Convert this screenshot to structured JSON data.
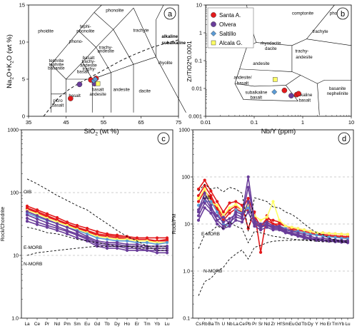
{
  "chart_data": [
    {
      "type": "scatter",
      "panel": "a",
      "xlabel_main": "SiO",
      "xlabel_sub": "2",
      "xlabel_tail": " (wt %)",
      "ylabel_parts": [
        "Na",
        "2",
        "O+K",
        "2",
        "O (wt %)"
      ],
      "xlim": [
        35,
        75
      ],
      "ylim": [
        0,
        15
      ],
      "x_ticks": [
        "35",
        "45",
        "55",
        "65",
        "75"
      ],
      "y_ticks": [
        "0",
        "5",
        "10",
        "15"
      ],
      "field_labels": [
        "phonolite",
        "phoidite",
        "tephi-",
        "phonolite",
        "phono-",
        "tephrite",
        "tephrite",
        "basanite",
        "trachyte",
        "trachy-",
        "andesite",
        "basalt",
        "trachy-",
        "andesite",
        "trachy-",
        "basalt",
        "alkaline",
        "subalkaline",
        "rhyolite",
        "dacite",
        "andesite",
        "basalt",
        "andesite",
        "basalt",
        "picro",
        "basalt"
      ],
      "series": [
        {
          "name": "Santa A.",
          "points": [
            [
              46.2,
              2.4
            ],
            [
              51.6,
              4.9
            ],
            [
              53.0,
              5.1
            ]
          ]
        },
        {
          "name": "Olvera",
          "points": [
            [
              48.6,
              4.3
            ],
            [
              52.6,
              4.4
            ]
          ]
        },
        {
          "name": "Saltillo",
          "points": [
            [
              52.4,
              4.8
            ],
            [
              52.8,
              5.0
            ]
          ]
        },
        {
          "name": "Alcala G.",
          "points": [
            [
              53.5,
              4.4
            ]
          ]
        }
      ]
    },
    {
      "type": "scatter",
      "panel": "b",
      "xlabel": "Nb/Y (ppm)",
      "ylabel": "Zr/TiO2*0.0001",
      "x_scale": "log",
      "y_scale": "log",
      "xlim": [
        0.01,
        10
      ],
      "ylim": [
        0.001,
        10
      ],
      "x_ticks": [
        "0.01",
        "0.1",
        "1",
        "10"
      ],
      "y_ticks": [
        "0.001",
        "0.01",
        "0.1",
        "1",
        "10"
      ],
      "field_labels": [
        "comptonite",
        "phonolite",
        "rhyolite",
        "trachyte",
        "rhyodacite",
        "dacite",
        "trachy-",
        "andesite",
        "andesite",
        "andesite/",
        "basalt",
        "subalkaline",
        "basalt",
        "alkaline",
        "basalt",
        "basanite",
        "nephelinite"
      ],
      "legend": {
        "position": "top-left",
        "entries": [
          "Santa A.",
          "Olvera",
          "Saltillo",
          "Alcala G."
        ]
      },
      "series": [
        {
          "name": "Santa A.",
          "points": [
            [
              0.42,
              0.0085
            ],
            [
              0.75,
              0.006
            ],
            [
              0.82,
              0.0065
            ]
          ]
        },
        {
          "name": "Olvera",
          "points": [
            [
              0.58,
              0.0055
            ]
          ]
        },
        {
          "name": "Saltillo",
          "points": [
            [
              0.26,
              0.0075
            ]
          ]
        },
        {
          "name": "Alcala G.",
          "points": [
            [
              0.27,
              0.021
            ]
          ]
        }
      ]
    },
    {
      "type": "line",
      "panel": "c",
      "ylabel": "Rock/Chondrite",
      "y_scale": "log",
      "ylim": [
        1,
        1000
      ],
      "y_ticks": [
        "1.0",
        "10",
        "100",
        "1000"
      ],
      "categories": [
        "La",
        "Ce",
        "Pr",
        "Nd",
        "Pm",
        "Sm",
        "Eu",
        "Gd",
        "Tb",
        "Dy",
        "Ho",
        "Er",
        "Tm",
        "Yb",
        "Lu"
      ],
      "reference_labels": [
        "OIB",
        "E-MORB",
        "N-MORB"
      ],
      "reference": [
        {
          "name": "OIB",
          "values": [
            165,
            138,
            112,
            90,
            75,
            62,
            53,
            41,
            32,
            25,
            20,
            17,
            14,
            12,
            12
          ]
        },
        {
          "name": "E-MORB",
          "values": [
            28,
            26,
            23,
            22,
            20,
            18,
            17,
            16,
            15,
            14,
            14,
            13,
            13,
            13,
            13
          ]
        },
        {
          "name": "N-MORB",
          "values": [
            10,
            11,
            11.5,
            12,
            12.5,
            13,
            13.5,
            14,
            14,
            14,
            14,
            14,
            14,
            14,
            14
          ]
        }
      ],
      "series": [
        {
          "name": "Santa A.",
          "values": [
            61,
            53,
            46,
            40,
            34,
            30,
            27,
            24,
            22,
            21,
            20,
            19,
            19,
            19,
            19
          ]
        },
        {
          "name": "Santa A.",
          "values": [
            57,
            50,
            43,
            37,
            32,
            28,
            25,
            22,
            21,
            20,
            19,
            18,
            18,
            17,
            18
          ]
        },
        {
          "name": "Santa A.",
          "values": [
            55,
            48,
            41,
            36,
            31,
            27,
            24,
            21,
            20,
            19,
            18,
            17,
            17,
            17,
            17
          ]
        },
        {
          "name": "Alcala G.",
          "values": [
            52,
            46,
            39,
            34,
            30,
            26,
            23,
            20,
            19,
            18,
            18,
            17,
            17,
            16,
            16
          ]
        },
        {
          "name": "Saltillo",
          "values": [
            47,
            41,
            36,
            32,
            28,
            25,
            22,
            19,
            18,
            17,
            17,
            16,
            16,
            15,
            16
          ]
        },
        {
          "name": "Olvera",
          "values": [
            50,
            43,
            37,
            32,
            28,
            24,
            20,
            17,
            16,
            16,
            15,
            15,
            14,
            14,
            14
          ]
        },
        {
          "name": "Olvera",
          "values": [
            44,
            38,
            33,
            29,
            25,
            22,
            19,
            16,
            15,
            15,
            14,
            14,
            13,
            13,
            13
          ]
        },
        {
          "name": "Olvera",
          "values": [
            39,
            34,
            30,
            27,
            24,
            21,
            18,
            15,
            14,
            14,
            13,
            13,
            12,
            12,
            12
          ]
        },
        {
          "name": "Olvera",
          "values": [
            35,
            31,
            28,
            25,
            22,
            19,
            17,
            14,
            13,
            13,
            12,
            12,
            12,
            11,
            11
          ]
        }
      ]
    },
    {
      "type": "line",
      "panel": "d",
      "ylabel": "Rock/PM",
      "y_scale": "log",
      "ylim": [
        0.1,
        1000
      ],
      "y_ticks": [
        "0.1",
        "1.0",
        "10",
        "100",
        "1000"
      ],
      "categories": [
        "Cs",
        "Rb",
        "Ba",
        "Th",
        "U",
        "Nb",
        "La",
        "Ce",
        "Pb",
        "Pr",
        "Sr",
        "Nd",
        "Zr",
        "Hf",
        "Sm",
        "Eu",
        "Gd",
        "Tb",
        "Dy",
        "Y",
        "Ho",
        "Er",
        "Tm",
        "Yb",
        "Lu"
      ],
      "reference_labels": [
        "OIB",
        "E-MORB",
        "N-MORB"
      ],
      "reference": [
        {
          "name": "OIB",
          "values": [
            50,
            70,
            55,
            60,
            48,
            60,
            55,
            45,
            7,
            36,
            33,
            30,
            23,
            22,
            18,
            16,
            13,
            10,
            8,
            6.5,
            6,
            5,
            4.6,
            4.3,
            4.1
          ]
        },
        {
          "name": "E-MORB",
          "values": [
            3,
            6,
            7,
            9,
            8,
            11,
            9,
            8,
            4,
            7,
            6.5,
            6,
            5.5,
            5.3,
            5,
            4.8,
            4.6,
            4.5,
            4.4,
            4.3,
            4.2,
            4.2,
            4.2,
            4.1,
            4.1
          ]
        },
        {
          "name": "N-MORB",
          "values": [
            0.3,
            0.6,
            0.7,
            1.0,
            1.2,
            1.8,
            2.3,
            2.8,
            1.8,
            3.2,
            3.5,
            4.0,
            4.3,
            4.4,
            4.5,
            4.5,
            4.6,
            4.6,
            4.6,
            4.6,
            4.6,
            4.5,
            4.5,
            4.5,
            4.5
          ]
        }
      ],
      "series": [
        {
          "name": "Santa A.",
          "values": [
            55,
            85,
            50,
            30,
            18,
            28,
            30,
            25,
            8,
            18,
            2.5,
            15,
            10,
            10,
            9,
            8.5,
            8,
            7.5,
            7,
            6.5,
            6.5,
            6.3,
            6.2,
            6.1,
            6.0
          ]
        },
        {
          "name": "Santa A.",
          "values": [
            40,
            65,
            40,
            22,
            14,
            20,
            24,
            20,
            35,
            15,
            9,
            13,
            12,
            11,
            9,
            8,
            7.5,
            7,
            6.5,
            6,
            6,
            5.8,
            5.6,
            5.5,
            5.4
          ]
        },
        {
          "name": "Santa A.",
          "values": [
            30,
            50,
            35,
            20,
            12,
            17,
            21,
            18,
            20,
            13,
            8,
            12,
            10,
            9,
            8,
            7.5,
            7,
            6.5,
            6,
            5.8,
            5.6,
            5.5,
            5.3,
            5.2,
            5.1
          ]
        },
        {
          "name": "Alcala G.",
          "values": [
            35,
            55,
            28,
            25,
            15,
            22,
            26,
            20,
            25,
            15,
            12,
            14,
            30,
            12,
            9,
            8.5,
            8,
            7.5,
            7,
            6.5,
            6.5,
            6.3,
            6.2,
            6.1,
            6.0
          ]
        },
        {
          "name": "Saltillo",
          "values": [
            25,
            30,
            30,
            18,
            10,
            9,
            20,
            17,
            22,
            12,
            8,
            11,
            9,
            9,
            8,
            7,
            7,
            6.5,
            6,
            5.8,
            5.5,
            5.3,
            5.2,
            5.0,
            4.9
          ]
        },
        {
          "name": "Olvera",
          "values": [
            20,
            45,
            25,
            12,
            14,
            10,
            18,
            16,
            100,
            12,
            10,
            11,
            9,
            9,
            7.5,
            7,
            6.5,
            6,
            5.5,
            5,
            5,
            4.8,
            4.6,
            4.5,
            4.4
          ]
        },
        {
          "name": "Olvera",
          "values": [
            18,
            35,
            22,
            15,
            11,
            13,
            16,
            14,
            60,
            11,
            9,
            10,
            8.5,
            8.5,
            7,
            6.5,
            6,
            5.5,
            5,
            4.8,
            4.6,
            4.5,
            4.4,
            4.3,
            4.2
          ]
        },
        {
          "name": "Olvera",
          "values": [
            15,
            28,
            20,
            12,
            9,
            11,
            14,
            13,
            30,
            10,
            8.5,
            9.5,
            8,
            8,
            6.8,
            6.2,
            5.8,
            5.3,
            4.9,
            4.6,
            4.5,
            4.4,
            4.3,
            4.2,
            4.1
          ]
        },
        {
          "name": "Olvera",
          "values": [
            12,
            22,
            17,
            10,
            8,
            9,
            12,
            11,
            18,
            9,
            7.5,
            8.5,
            7.5,
            7.5,
            6.5,
            6,
            5.5,
            5,
            4.7,
            4.5,
            4.4,
            4.3,
            4.2,
            4.1,
            4.0
          ]
        }
      ]
    }
  ],
  "panel_labels": [
    "a",
    "b",
    "c",
    "d"
  ],
  "colors": {
    "Santa A.": "#e31a1c",
    "Olvera": "#6a3d9a",
    "Saltillo": "#5b9bd5",
    "Alcala G.": "#ffff66",
    "reference": "#000000",
    "grid": "#999999"
  }
}
